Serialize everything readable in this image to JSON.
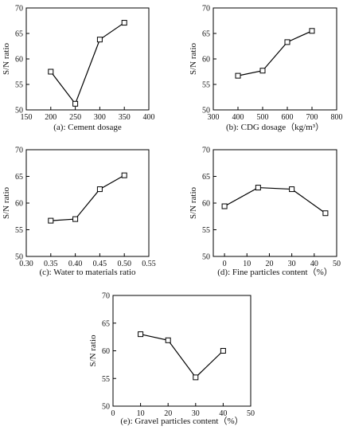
{
  "chart_data": [
    {
      "type": "line",
      "caption": "(a): Cement dosage",
      "ylabel": "S/N ratio",
      "x": [
        200,
        250,
        300,
        350
      ],
      "y": [
        57.5,
        51.2,
        63.8,
        67.1
      ],
      "xlim": [
        150,
        400
      ],
      "ylim": [
        50,
        70
      ],
      "xticks": [
        150,
        200,
        250,
        300,
        350,
        400
      ],
      "yticks": [
        50,
        55,
        60,
        65,
        70
      ],
      "marker": "open-square",
      "grid": false
    },
    {
      "type": "line",
      "caption": "(b): CDG dosage（kg/m³）",
      "ylabel": "S/N ratio",
      "x": [
        400,
        500,
        600,
        700
      ],
      "y": [
        56.7,
        57.7,
        63.3,
        65.5
      ],
      "xlim": [
        300,
        800
      ],
      "ylim": [
        50,
        70
      ],
      "xticks": [
        300,
        400,
        500,
        600,
        700,
        800
      ],
      "yticks": [
        50,
        55,
        60,
        65,
        70
      ],
      "marker": "open-square",
      "grid": false
    },
    {
      "type": "line",
      "caption": "(c): Water to materials ratio",
      "ylabel": "S/N ratio",
      "x": [
        0.35,
        0.4,
        0.45,
        0.5
      ],
      "y": [
        56.7,
        57.0,
        62.6,
        65.2
      ],
      "xlim": [
        0.3,
        0.55
      ],
      "ylim": [
        50,
        70
      ],
      "xticks": [
        "0.30",
        "0.35",
        "0.40",
        "0.45",
        "0.50",
        "0.55"
      ],
      "yticks": [
        50,
        55,
        60,
        65,
        70
      ],
      "marker": "open-square",
      "grid": false
    },
    {
      "type": "line",
      "caption": "(d): Fine particles content（%）",
      "ylabel": "S/N ratio",
      "x": [
        0,
        15,
        30,
        45
      ],
      "y": [
        59.4,
        62.9,
        62.6,
        58.1
      ],
      "xlim": [
        -5,
        50
      ],
      "ylim": [
        50,
        70
      ],
      "xticks": [
        0,
        10,
        20,
        30,
        40,
        50
      ],
      "yticks": [
        50,
        55,
        60,
        65,
        70
      ],
      "marker": "open-square",
      "grid": false
    },
    {
      "type": "line",
      "caption": "(e): Gravel particles content（%）",
      "ylabel": "S/N ratio",
      "x": [
        10,
        20,
        30,
        40
      ],
      "y": [
        63.0,
        61.9,
        55.2,
        60.0
      ],
      "xlim": [
        0,
        50
      ],
      "ylim": [
        50,
        70
      ],
      "xticks": [
        0,
        10,
        20,
        30,
        40,
        50
      ],
      "yticks": [
        50,
        55,
        60,
        65,
        70
      ],
      "marker": "open-square",
      "grid": false
    }
  ]
}
